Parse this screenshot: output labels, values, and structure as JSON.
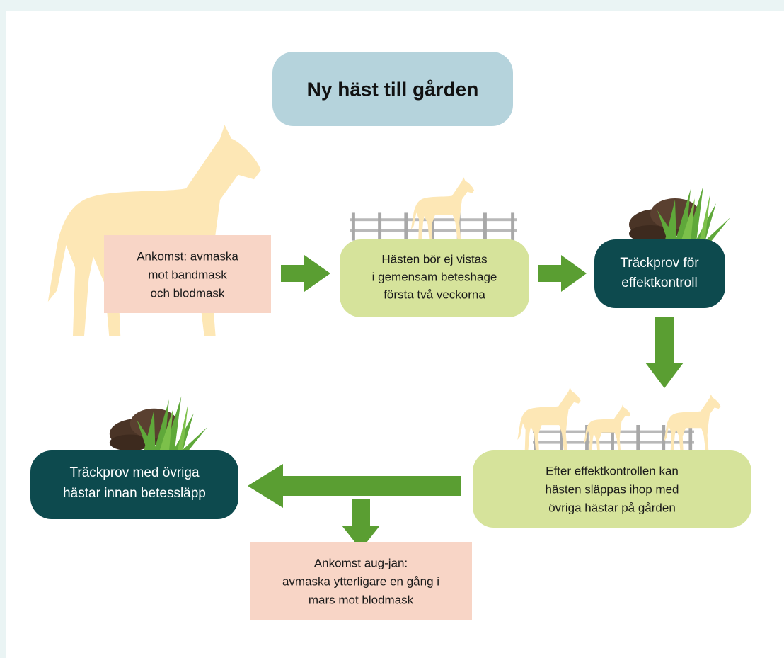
{
  "title": "Ny häst till gården",
  "nodes": [
    {
      "lines": [
        "Ankomst: avmaska",
        "mot bandmask",
        "och blodmask"
      ]
    },
    {
      "lines": [
        "Hästen bör ej vistas",
        "i gemensam beteshage",
        "första två veckorna"
      ]
    },
    {
      "lines": [
        "Träckprov för",
        "effektkontroll"
      ]
    },
    {
      "lines": [
        "Efter effektkontrollen kan",
        "hästen släppas ihop med",
        "övriga hästar på gården"
      ]
    },
    {
      "lines": [
        "Träckprov med övriga",
        "hästar innan betessläpp"
      ]
    },
    {
      "lines": [
        "Ankomst aug-jan:",
        "avmaska ytterligare en gång i",
        "mars mot blodmask"
      ]
    }
  ]
}
